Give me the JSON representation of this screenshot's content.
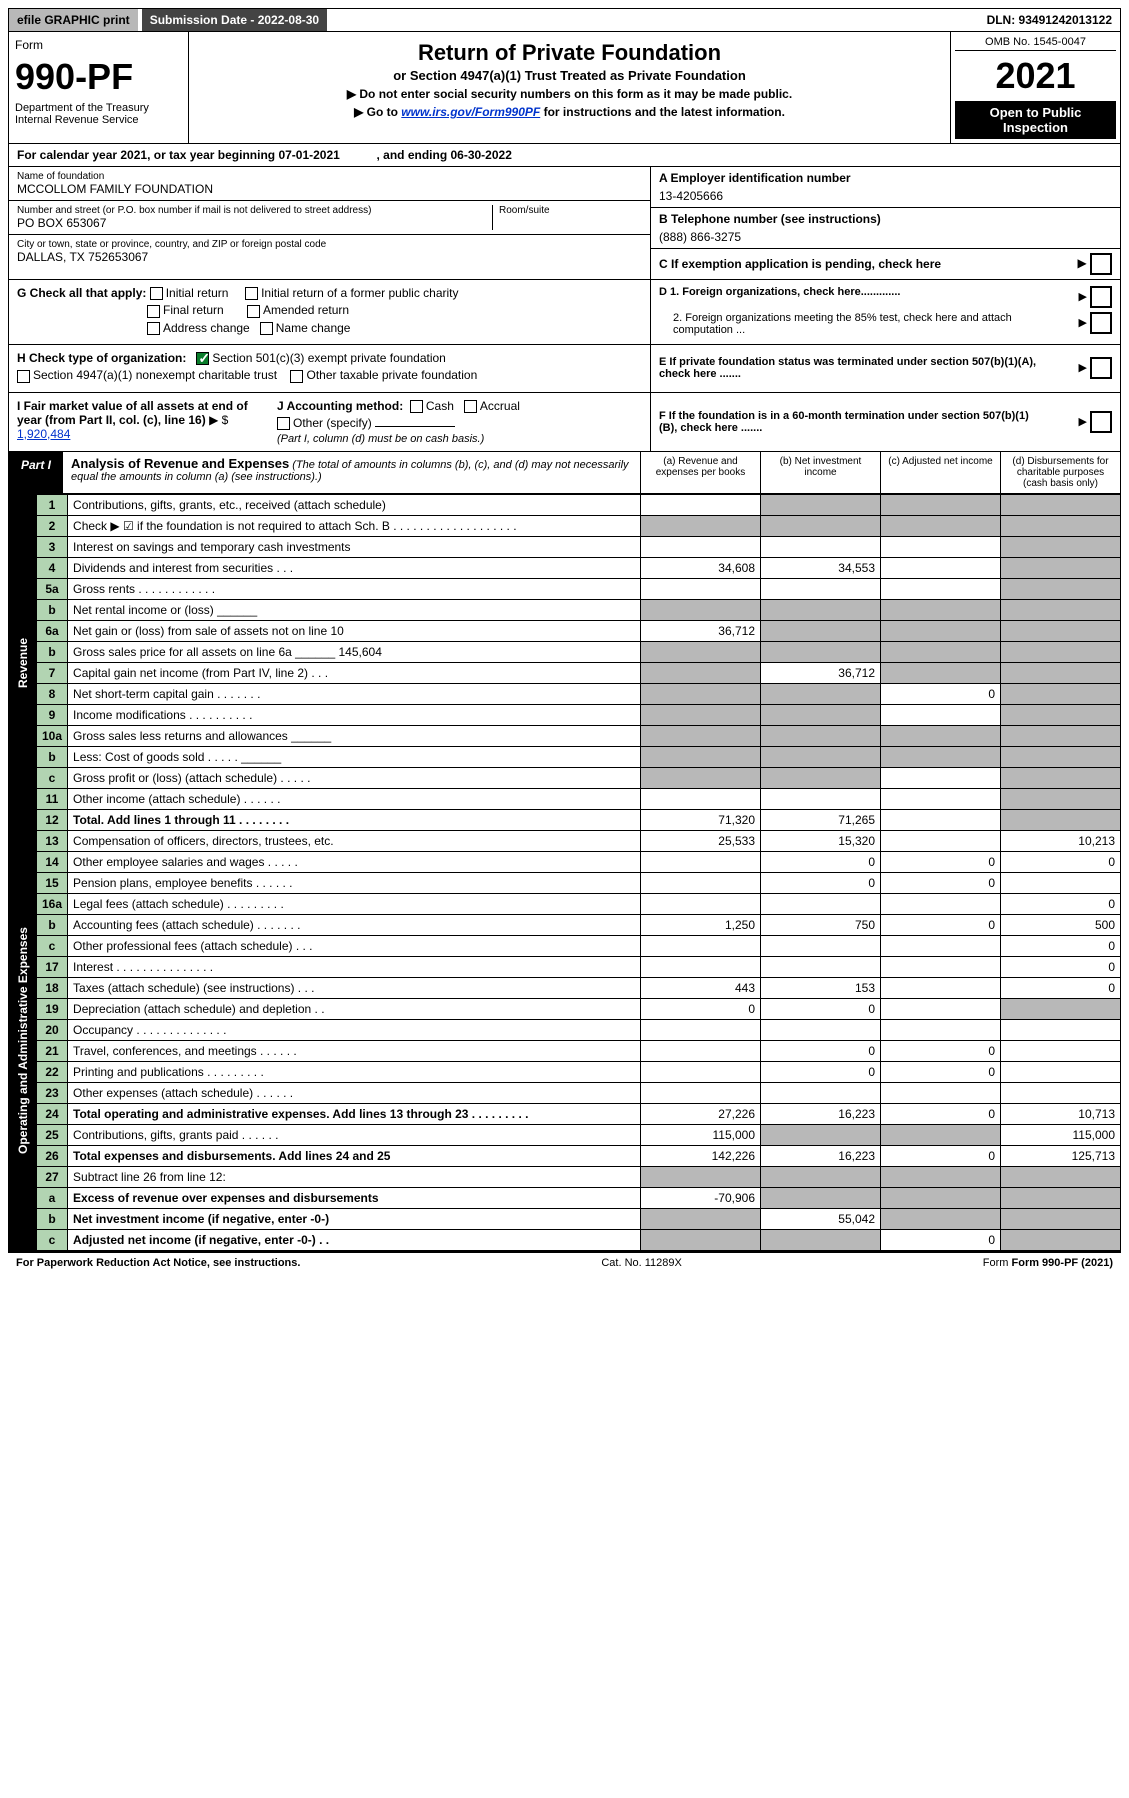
{
  "topbar": {
    "efile": "efile GRAPHIC print",
    "submission_label": "Submission Date - 2022-08-30",
    "dln": "DLN: 93491242013122"
  },
  "header": {
    "form_word": "Form",
    "form_no": "990-PF",
    "dept": "Department of the Treasury\nInternal Revenue Service",
    "title": "Return of Private Foundation",
    "subtitle": "or Section 4947(a)(1) Trust Treated as Private Foundation",
    "note1": "▶ Do not enter social security numbers on this form as it may be made public.",
    "note2_pre": "▶ Go to ",
    "note2_link": "www.irs.gov/Form990PF",
    "note2_post": " for instructions and the latest information.",
    "omb": "OMB No. 1545-0047",
    "year": "2021",
    "open": "Open to Public Inspection"
  },
  "cal_year": "For calendar year 2021, or tax year beginning 07-01-2021           , and ending 06-30-2022",
  "foundation": {
    "name_label": "Name of foundation",
    "name": "MCCOLLOM FAMILY FOUNDATION",
    "addr_label": "Number and street (or P.O. box number if mail is not delivered to street address)",
    "room_label": "Room/suite",
    "addr": "PO BOX 653067",
    "city_label": "City or town, state or province, country, and ZIP or foreign postal code",
    "city": "DALLAS, TX  752653067",
    "ein_label": "A Employer identification number",
    "ein": "13-4205666",
    "phone_label": "B Telephone number (see instructions)",
    "phone": "(888) 866-3275",
    "c_label": "C If exemption application is pending, check here"
  },
  "checks": {
    "g_label": "G Check all that apply:",
    "g_opts": [
      "Initial return",
      "Initial return of a former public charity",
      "Final return",
      "Amended return",
      "Address change",
      "Name change"
    ],
    "h_label": "H Check type of organization:",
    "h1": "Section 501(c)(3) exempt private foundation",
    "h2": "Section 4947(a)(1) nonexempt charitable trust",
    "h3": "Other taxable private foundation",
    "i_label": "I Fair market value of all assets at end of year (from Part II, col. (c), line 16)",
    "i_value": "1,920,484",
    "j_label": "J Accounting method:",
    "j_opts": [
      "Cash",
      "Accrual",
      "Other (specify)"
    ],
    "j_note": "(Part I, column (d) must be on cash basis.)",
    "d1": "D 1. Foreign organizations, check here.............",
    "d2": "2. Foreign organizations meeting the 85% test, check here and attach computation ...",
    "e_label": "E  If private foundation status was terminated under section 507(b)(1)(A), check here .......",
    "f_label": "F  If the foundation is in a 60-month termination under section 507(b)(1)(B), check here ......."
  },
  "part1": {
    "tag": "Part I",
    "title": "Analysis of Revenue and Expenses",
    "note": "(The total of amounts in columns (b), (c), and (d) may not necessarily equal the amounts in column (a) (see instructions).)",
    "cols": {
      "a": "(a)  Revenue and expenses per books",
      "b": "(b)  Net investment income",
      "c": "(c)  Adjusted net income",
      "d": "(d)  Disbursements for charitable purposes (cash basis only)"
    }
  },
  "revenue_label": "Revenue",
  "expenses_label": "Operating and Administrative Expenses",
  "rows": [
    {
      "no": "1",
      "desc": "Contributions, gifts, grants, etc., received (attach schedule)",
      "a": "",
      "b": "shaded",
      "c": "shaded",
      "d": "shaded"
    },
    {
      "no": "2",
      "desc": "Check ▶ ☑ if the foundation is not required to attach Sch. B   . . . . . . . . . . . . . . . . . . .",
      "a": "shaded",
      "b": "shaded",
      "c": "shaded",
      "d": "shaded"
    },
    {
      "no": "3",
      "desc": "Interest on savings and temporary cash investments",
      "a": "",
      "b": "",
      "c": "",
      "d": "shaded"
    },
    {
      "no": "4",
      "desc": "Dividends and interest from securities   . . .",
      "a": "34,608",
      "b": "34,553",
      "c": "",
      "d": "shaded"
    },
    {
      "no": "5a",
      "desc": "Gross rents   . . . . . . . . . . . .",
      "a": "",
      "b": "",
      "c": "",
      "d": "shaded"
    },
    {
      "no": "b",
      "desc": "Net rental income or (loss)  ______",
      "a": "shaded",
      "b": "shaded",
      "c": "shaded",
      "d": "shaded"
    },
    {
      "no": "6a",
      "desc": "Net gain or (loss) from sale of assets not on line 10",
      "a": "36,712",
      "b": "shaded",
      "c": "shaded",
      "d": "shaded"
    },
    {
      "no": "b",
      "desc": "Gross sales price for all assets on line 6a ______ 145,604",
      "a": "shaded",
      "b": "shaded",
      "c": "shaded",
      "d": "shaded"
    },
    {
      "no": "7",
      "desc": "Capital gain net income (from Part IV, line 2)   . . .",
      "a": "shaded",
      "b": "36,712",
      "c": "shaded",
      "d": "shaded"
    },
    {
      "no": "8",
      "desc": "Net short-term capital gain   . . . . . . .",
      "a": "shaded",
      "b": "shaded",
      "c": "0",
      "d": "shaded"
    },
    {
      "no": "9",
      "desc": "Income modifications . . . . . . . . . .",
      "a": "shaded",
      "b": "shaded",
      "c": "",
      "d": "shaded"
    },
    {
      "no": "10a",
      "desc": "Gross sales less returns and allowances  ______",
      "a": "shaded",
      "b": "shaded",
      "c": "shaded",
      "d": "shaded"
    },
    {
      "no": "b",
      "desc": "Less: Cost of goods sold   . . . . .  ______",
      "a": "shaded",
      "b": "shaded",
      "c": "shaded",
      "d": "shaded"
    },
    {
      "no": "c",
      "desc": "Gross profit or (loss) (attach schedule)   . . . . .",
      "a": "shaded",
      "b": "shaded",
      "c": "",
      "d": "shaded"
    },
    {
      "no": "11",
      "desc": "Other income (attach schedule)   . . . . . .",
      "a": "",
      "b": "",
      "c": "",
      "d": "shaded"
    },
    {
      "no": "12",
      "desc": "Total. Add lines 1 through 11  . . . . . . . .",
      "a": "71,320",
      "b": "71,265",
      "c": "",
      "d": "shaded",
      "bold": true
    },
    {
      "no": "13",
      "desc": "Compensation of officers, directors, trustees, etc.",
      "a": "25,533",
      "b": "15,320",
      "c": "",
      "d": "10,213"
    },
    {
      "no": "14",
      "desc": "Other employee salaries and wages   . . . . .",
      "a": "",
      "b": "0",
      "c": "0",
      "d": "0"
    },
    {
      "no": "15",
      "desc": "Pension plans, employee benefits  . . . . . .",
      "a": "",
      "b": "0",
      "c": "0",
      "d": ""
    },
    {
      "no": "16a",
      "desc": "Legal fees (attach schedule) . . . . . . . . .",
      "a": "",
      "b": "",
      "c": "",
      "d": "0"
    },
    {
      "no": "b",
      "desc": "Accounting fees (attach schedule) . . . . . . .",
      "a": "1,250",
      "b": "750",
      "c": "0",
      "d": "500"
    },
    {
      "no": "c",
      "desc": "Other professional fees (attach schedule)   . . .",
      "a": "",
      "b": "",
      "c": "",
      "d": "0"
    },
    {
      "no": "17",
      "desc": "Interest . . . . . . . . . . . . . . .",
      "a": "",
      "b": "",
      "c": "",
      "d": "0"
    },
    {
      "no": "18",
      "desc": "Taxes (attach schedule) (see instructions)   . . .",
      "a": "443",
      "b": "153",
      "c": "",
      "d": "0"
    },
    {
      "no": "19",
      "desc": "Depreciation (attach schedule) and depletion   . .",
      "a": "0",
      "b": "0",
      "c": "",
      "d": "shaded"
    },
    {
      "no": "20",
      "desc": "Occupancy . . . . . . . . . . . . . .",
      "a": "",
      "b": "",
      "c": "",
      "d": ""
    },
    {
      "no": "21",
      "desc": "Travel, conferences, and meetings  . . . . . .",
      "a": "",
      "b": "0",
      "c": "0",
      "d": ""
    },
    {
      "no": "22",
      "desc": "Printing and publications . . . . . . . . .",
      "a": "",
      "b": "0",
      "c": "0",
      "d": ""
    },
    {
      "no": "23",
      "desc": "Other expenses (attach schedule)  . . . . . .",
      "a": "",
      "b": "",
      "c": "",
      "d": ""
    },
    {
      "no": "24",
      "desc": "Total operating and administrative expenses. Add lines 13 through 23  . . . . . . . . .",
      "a": "27,226",
      "b": "16,223",
      "c": "0",
      "d": "10,713",
      "bold": true
    },
    {
      "no": "25",
      "desc": "Contributions, gifts, grants paid   . . . . . .",
      "a": "115,000",
      "b": "shaded",
      "c": "shaded",
      "d": "115,000"
    },
    {
      "no": "26",
      "desc": "Total expenses and disbursements. Add lines 24 and 25",
      "a": "142,226",
      "b": "16,223",
      "c": "0",
      "d": "125,713",
      "bold": true
    },
    {
      "no": "27",
      "desc": "Subtract line 26 from line 12:",
      "a": "shaded",
      "b": "shaded",
      "c": "shaded",
      "d": "shaded"
    },
    {
      "no": "a",
      "desc": "Excess of revenue over expenses and disbursements",
      "a": "-70,906",
      "b": "shaded",
      "c": "shaded",
      "d": "shaded",
      "bold": true
    },
    {
      "no": "b",
      "desc": "Net investment income (if negative, enter -0-)",
      "a": "shaded",
      "b": "55,042",
      "c": "shaded",
      "d": "shaded",
      "bold": true
    },
    {
      "no": "c",
      "desc": "Adjusted net income (if negative, enter -0-)   . .",
      "a": "shaded",
      "b": "shaded",
      "c": "0",
      "d": "shaded",
      "bold": true
    }
  ],
  "footer": {
    "pra": "For Paperwork Reduction Act Notice, see instructions.",
    "cat": "Cat. No. 11289X",
    "form": "Form 990-PF (2021)"
  }
}
